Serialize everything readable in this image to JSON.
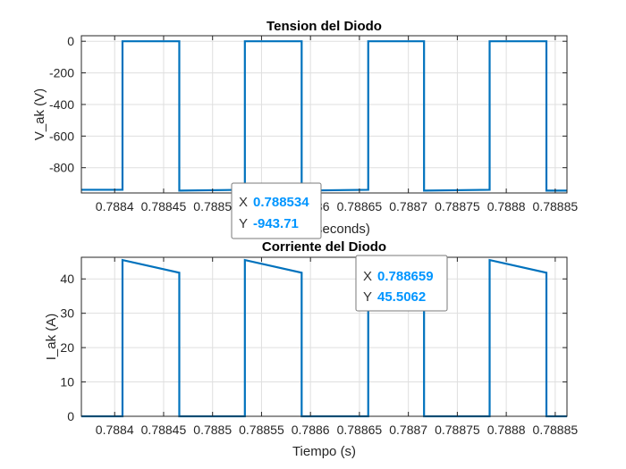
{
  "chart_data": [
    {
      "type": "line",
      "title": "Tension del Diodo",
      "ylabel": "V_ak (V)",
      "xlabel": "Time (seconds)",
      "xlim": [
        0.788366,
        0.788862
      ],
      "ylim": [
        -960,
        35
      ],
      "grid": true,
      "line_color": "#0072BD",
      "xticks": [
        0.7884,
        0.78845,
        0.7885,
        0.78855,
        0.7886,
        0.78865,
        0.7887,
        0.78875,
        0.7888,
        0.78885
      ],
      "xtick_labels": [
        "0.7884",
        "0.78845",
        "0.7885",
        "0.78855",
        "0.7886",
        "0.78865",
        "0.7887",
        "0.78875",
        "0.7888",
        "0.78885"
      ],
      "yticks": [
        0,
        -200,
        -400,
        -600,
        -800
      ],
      "ytick_labels": [
        "0",
        "-200",
        "-400",
        "-600",
        "-800"
      ],
      "series": [
        {
          "x": [
            0.788366,
            0.788408,
            0.788408,
            0.788466,
            0.788466,
            0.788533,
            0.788533,
            0.788591,
            0.788591,
            0.788659,
            0.788659,
            0.788716,
            0.788716,
            0.788783,
            0.788783,
            0.788841,
            0.788841,
            0.788862
          ],
          "y": [
            -940,
            -940,
            0,
            0,
            -945,
            -940,
            0,
            0,
            -945,
            -940,
            0,
            0,
            -945,
            -940,
            0,
            0,
            -945,
            -945
          ]
        }
      ],
      "datatip": {
        "x_label": "X",
        "x_value": "0.788534",
        "y_label": "Y",
        "y_value": "-943.71",
        "x": 0.788534,
        "y": -943.71
      }
    },
    {
      "type": "line",
      "title": "Corriente del Diodo",
      "ylabel": "I_ak (A)",
      "xlabel": "Tiempo (s)",
      "xlim": [
        0.788366,
        0.788862
      ],
      "ylim": [
        0,
        46.3
      ],
      "grid": true,
      "line_color": "#0072BD",
      "xticks": [
        0.7884,
        0.78845,
        0.7885,
        0.78855,
        0.7886,
        0.78865,
        0.7887,
        0.78875,
        0.7888,
        0.78885
      ],
      "xtick_labels": [
        "0.7884",
        "0.78845",
        "0.7885",
        "0.78855",
        "0.7886",
        "0.78865",
        "0.7887",
        "0.78875",
        "0.7888",
        "0.78885"
      ],
      "yticks": [
        0,
        10,
        20,
        30,
        40
      ],
      "ytick_labels": [
        "0",
        "10",
        "20",
        "30",
        "40"
      ],
      "series": [
        {
          "x": [
            0.788366,
            0.788408,
            0.788408,
            0.788466,
            0.788466,
            0.788533,
            0.788533,
            0.788591,
            0.788591,
            0.788659,
            0.788659,
            0.788716,
            0.788716,
            0.788783,
            0.788783,
            0.788841,
            0.788841,
            0.788862
          ],
          "y": [
            0,
            0,
            45.5,
            41.8,
            0,
            0,
            45.5,
            41.8,
            0,
            0,
            45.5,
            41.8,
            0,
            0,
            45.5,
            41.8,
            0,
            0
          ]
        }
      ],
      "datatip": {
        "x_label": "X",
        "x_value": "0.788659",
        "y_label": "Y",
        "y_value": "45.5062",
        "x": 0.788659,
        "y": 45.5062
      }
    }
  ],
  "colors": {
    "line": "#0072BD",
    "grid": "#dfdfdf",
    "axis": "#262626",
    "datatip_value": "#0095ff",
    "datatip_border": "#7a7a7a",
    "datatip_background": "#ffffff"
  }
}
